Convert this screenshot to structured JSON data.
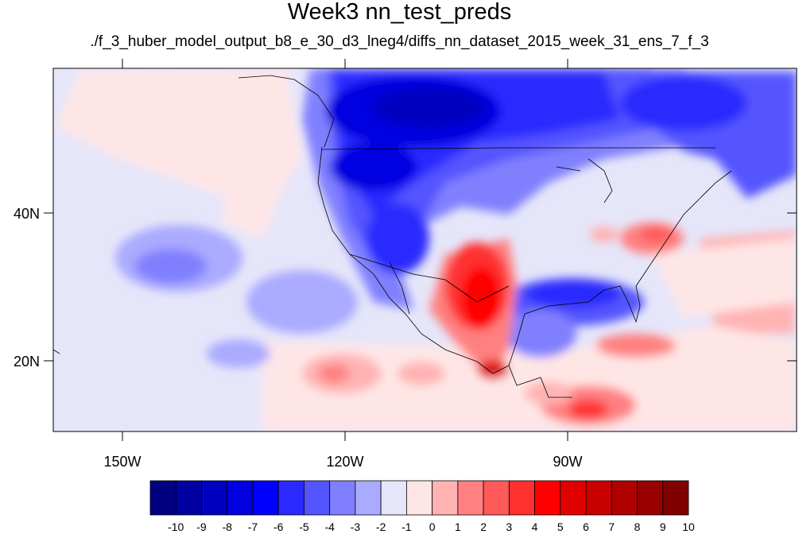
{
  "title": "Week3 nn_test_preds",
  "subtitle": "./f_3_huber_model_output_b8_e_30_d3_lneg4/diffs_nn_dataset_2015_week_31_ens_7_f_3",
  "map": {
    "lon_ticks": [
      {
        "lon": -150,
        "label": "150W"
      },
      {
        "lon": -120,
        "label": "120W"
      },
      {
        "lon": -90,
        "label": "90W"
      }
    ],
    "lat_ticks": [
      {
        "lat": 40,
        "label": "40N"
      },
      {
        "lat": 20,
        "label": "20N"
      }
    ],
    "lon_range": [
      -160,
      -62
    ],
    "lat_range": [
      11,
      59
    ]
  },
  "colorbar": {
    "labels": [
      "-10",
      "-9",
      "-8",
      "-7",
      "-6",
      "-5",
      "-4",
      "-3",
      "-2",
      "-1",
      "0",
      "1",
      "2",
      "3",
      "4",
      "5",
      "6",
      "7",
      "8",
      "9",
      "10"
    ],
    "colors": [
      "#000080",
      "#0000a0",
      "#0000c0",
      "#0000e0",
      "#0000ff",
      "#2a2aff",
      "#5555ff",
      "#8080ff",
      "#aaaaff",
      "#e6e6fa",
      "#ffe6e6",
      "#ffb3b3",
      "#ff8080",
      "#ff5959",
      "#ff3030",
      "#ff0000",
      "#e00000",
      "#c80000",
      "#b00000",
      "#980000",
      "#800000"
    ]
  }
}
